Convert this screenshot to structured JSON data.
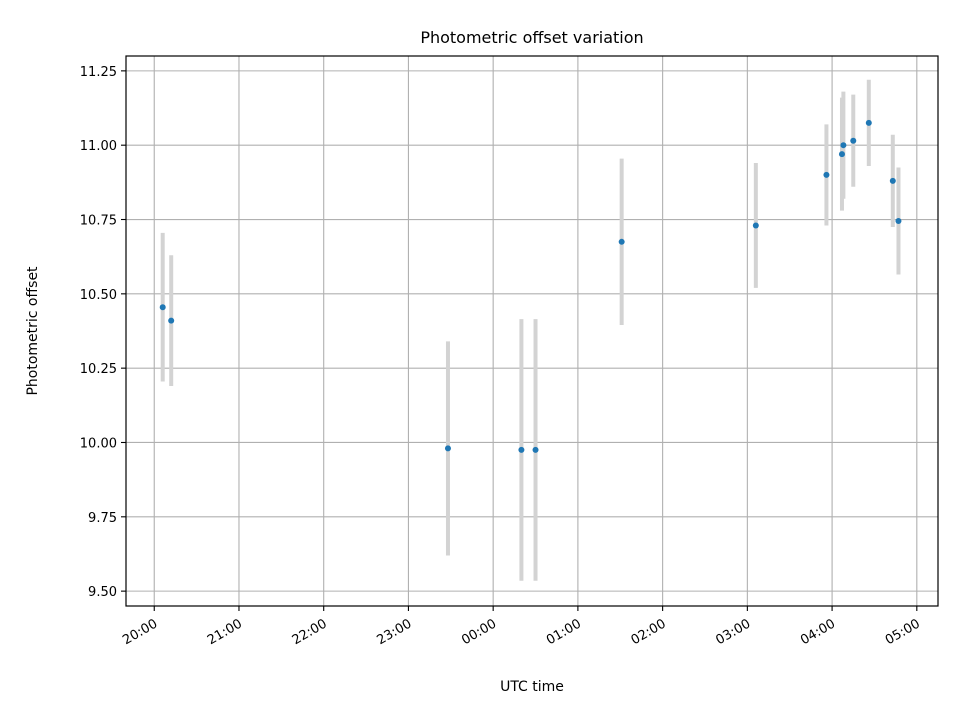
{
  "chart_data": {
    "type": "scatter",
    "title": "Photometric offset variation",
    "xlabel": "UTC time",
    "ylabel": "Photometric offset",
    "grid": true,
    "xlim": [
      "19:40",
      "05:15"
    ],
    "ylim": [
      9.45,
      11.3
    ],
    "x_ticks": [
      "20:00",
      "21:00",
      "22:00",
      "23:00",
      "00:00",
      "01:00",
      "02:00",
      "03:00",
      "04:00",
      "05:00"
    ],
    "y_ticks": [
      "9.50",
      "9.75",
      "10.00",
      "10.25",
      "10.50",
      "10.75",
      "11.00",
      "11.25"
    ],
    "colors": {
      "points": "#1f77b4",
      "errorbars": "#d3d3d3",
      "grid": "#b0b0b0"
    },
    "series": [
      {
        "points": [
          {
            "x": "20:06",
            "y": 10.455,
            "err": 0.25
          },
          {
            "x": "20:12",
            "y": 10.41,
            "err": 0.22
          },
          {
            "x": "23:28",
            "y": 9.98,
            "err": 0.36
          },
          {
            "x": "00:20",
            "y": 9.975,
            "err": 0.44
          },
          {
            "x": "00:30",
            "y": 9.975,
            "err": 0.44
          },
          {
            "x": "01:31",
            "y": 10.675,
            "err": 0.28
          },
          {
            "x": "03:06",
            "y": 10.73,
            "err": 0.21
          },
          {
            "x": "03:56",
            "y": 10.9,
            "err": 0.17
          },
          {
            "x": "04:07",
            "y": 10.97,
            "err": 0.19
          },
          {
            "x": "04:08",
            "y": 11.0,
            "err": 0.18
          },
          {
            "x": "04:15",
            "y": 11.015,
            "err": 0.155
          },
          {
            "x": "04:26",
            "y": 11.075,
            "err": 0.145
          },
          {
            "x": "04:43",
            "y": 10.88,
            "err": 0.155
          },
          {
            "x": "04:47",
            "y": 10.745,
            "err": 0.18
          }
        ]
      }
    ]
  }
}
